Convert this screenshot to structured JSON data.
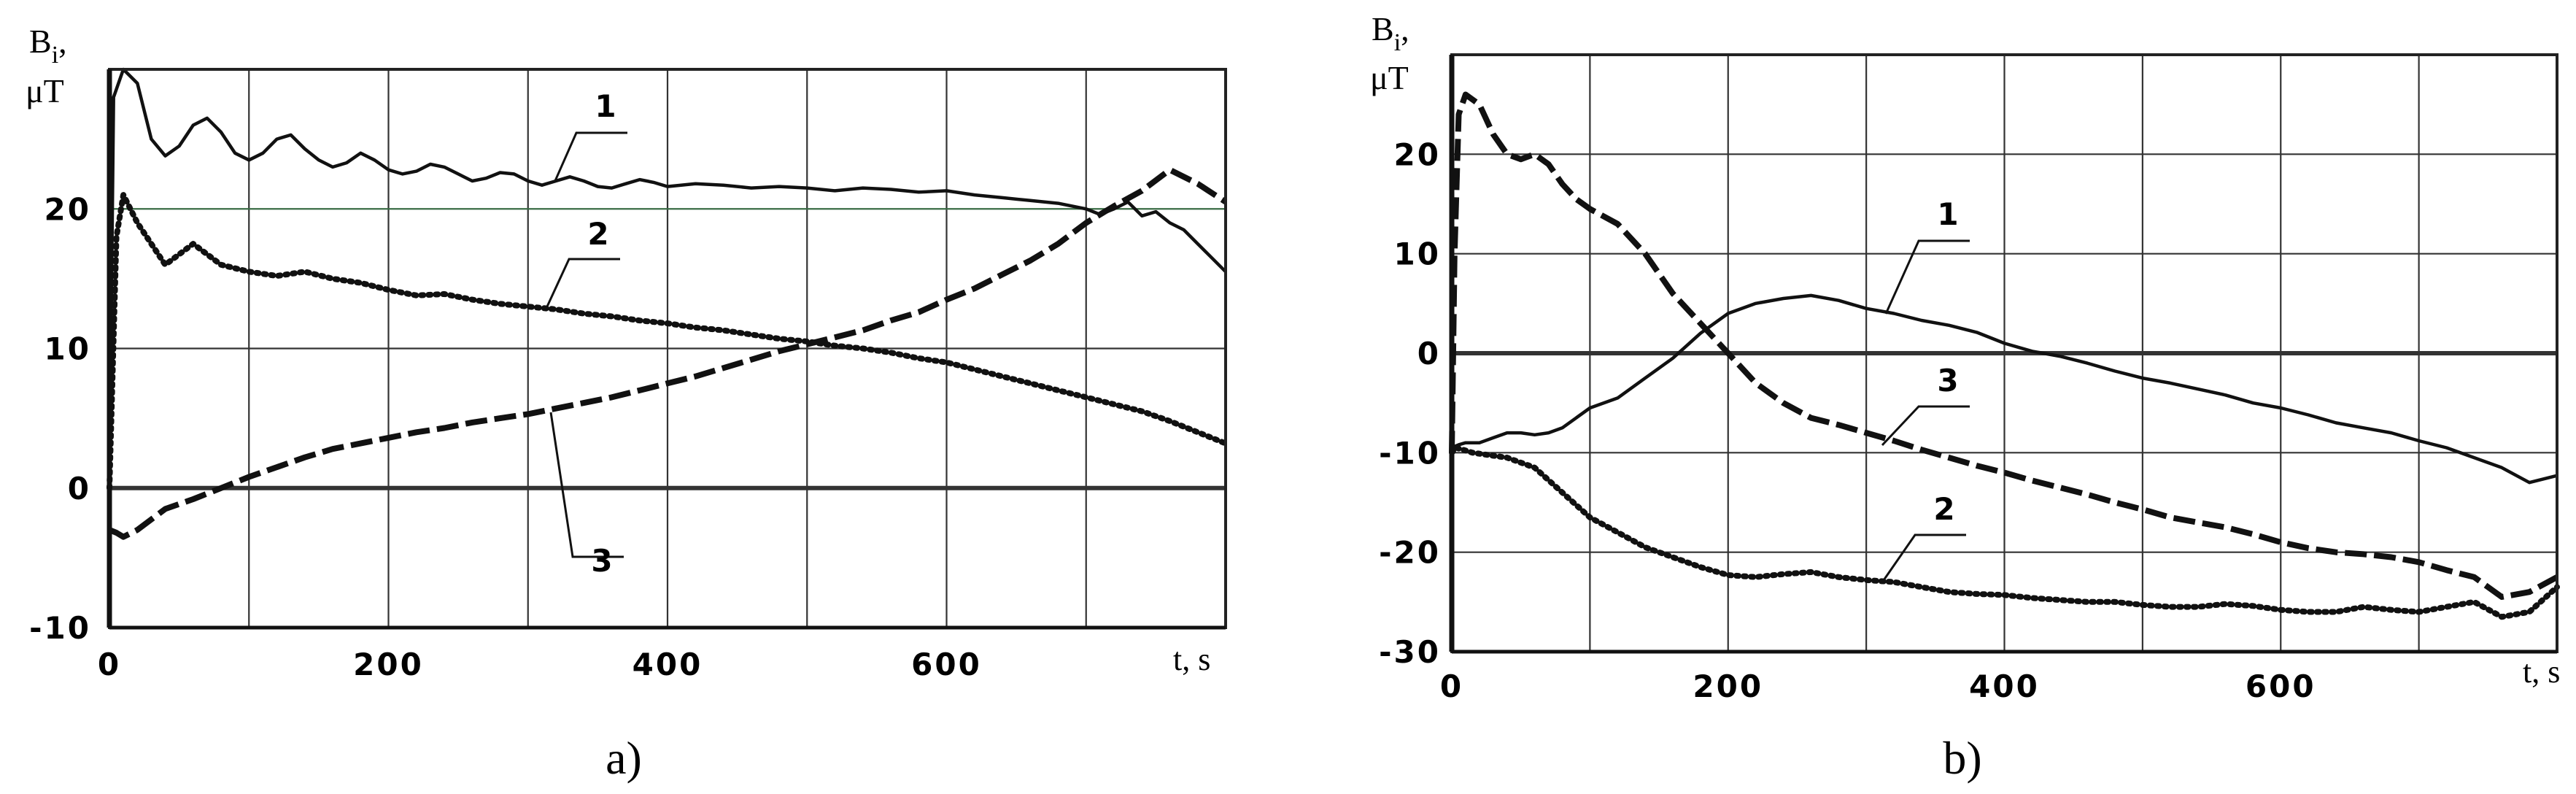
{
  "chart_data": [
    {
      "type": "line",
      "panel_label": "a)",
      "ylabel_symbol": "B",
      "ylabel_subscript": "i",
      "ylabel_comma": ",",
      "yunit": "μT",
      "xlabel": "t, s",
      "xlim": [
        0,
        800
      ],
      "ylim": [
        -10,
        30
      ],
      "xgrid": [
        0,
        100,
        200,
        300,
        400,
        500,
        600,
        700,
        800
      ],
      "ygrid": [
        -10,
        0,
        10,
        20,
        30
      ],
      "xticks": [
        {
          "value": 0,
          "label": "0"
        },
        {
          "value": 200,
          "label": "200"
        },
        {
          "value": 400,
          "label": "400"
        },
        {
          "value": 600,
          "label": "600"
        }
      ],
      "yticks": [
        {
          "value": -10,
          "label": "-10"
        },
        {
          "value": 0,
          "label": "0"
        },
        {
          "value": 10,
          "label": "10"
        },
        {
          "value": 20,
          "label": "20"
        }
      ],
      "grid": true,
      "series": [
        {
          "label": "1",
          "style": "solid",
          "x": [
            0,
            3,
            10,
            20,
            30,
            40,
            50,
            60,
            70,
            80,
            90,
            100,
            110,
            120,
            130,
            140,
            150,
            160,
            170,
            180,
            190,
            200,
            210,
            220,
            230,
            240,
            250,
            260,
            270,
            280,
            290,
            300,
            310,
            320,
            330,
            340,
            350,
            360,
            370,
            380,
            390,
            400,
            420,
            440,
            460,
            480,
            500,
            520,
            540,
            560,
            580,
            600,
            620,
            640,
            660,
            680,
            700,
            710,
            720,
            730,
            740,
            750,
            760,
            770,
            780,
            790,
            800
          ],
          "y": [
            0,
            28,
            30,
            29,
            25,
            23.8,
            24.5,
            26,
            26.5,
            25.5,
            24,
            23.5,
            24,
            25,
            25.3,
            24.3,
            23.5,
            23,
            23.3,
            24,
            23.5,
            22.8,
            22.5,
            22.7,
            23.2,
            23,
            22.5,
            22,
            22.2,
            22.6,
            22.5,
            22,
            21.7,
            22,
            22.3,
            22,
            21.6,
            21.5,
            21.8,
            22.1,
            21.9,
            21.6,
            21.8,
            21.7,
            21.5,
            21.6,
            21.5,
            21.3,
            21.5,
            21.4,
            21.2,
            21.3,
            21,
            20.8,
            20.6,
            20.4,
            20,
            19.6,
            20,
            20.5,
            19.5,
            19.8,
            19,
            18.5,
            17.5,
            16.5,
            15.5
          ]
        },
        {
          "label": "2",
          "style": "dotted",
          "x": [
            0,
            5,
            10,
            20,
            40,
            60,
            80,
            100,
            120,
            140,
            160,
            180,
            200,
            220,
            240,
            260,
            280,
            300,
            320,
            340,
            360,
            380,
            400,
            420,
            440,
            460,
            480,
            500,
            520,
            540,
            560,
            580,
            600,
            620,
            640,
            660,
            680,
            700,
            720,
            740,
            760,
            780,
            800
          ],
          "y": [
            0,
            18,
            21,
            19,
            16,
            17.5,
            16,
            15.5,
            15.2,
            15.5,
            15,
            14.7,
            14.2,
            13.8,
            13.9,
            13.5,
            13.2,
            13,
            12.8,
            12.5,
            12.3,
            12,
            11.8,
            11.5,
            11.3,
            11,
            10.7,
            10.5,
            10.2,
            10,
            9.7,
            9.3,
            9,
            8.5,
            8,
            7.5,
            7,
            6.5,
            6,
            5.5,
            4.8,
            4,
            3.2
          ]
        },
        {
          "label": "3",
          "style": "dashed",
          "x": [
            0,
            5,
            10,
            20,
            40,
            60,
            80,
            100,
            120,
            140,
            160,
            180,
            200,
            220,
            240,
            260,
            280,
            300,
            320,
            340,
            360,
            380,
            400,
            420,
            440,
            460,
            480,
            500,
            520,
            540,
            560,
            580,
            600,
            620,
            640,
            660,
            680,
            700,
            720,
            740,
            760,
            780,
            800
          ],
          "y": [
            -3,
            -3.2,
            -3.5,
            -3,
            -1.5,
            -0.8,
            0,
            0.8,
            1.5,
            2.2,
            2.8,
            3.2,
            3.6,
            4,
            4.3,
            4.7,
            5,
            5.3,
            5.7,
            6.1,
            6.5,
            7,
            7.5,
            8,
            8.6,
            9.2,
            9.8,
            10.3,
            10.8,
            11.3,
            12,
            12.6,
            13.5,
            14.3,
            15.3,
            16.3,
            17.5,
            19,
            20.2,
            21.3,
            22.8,
            21.8,
            20.5
          ]
        }
      ]
    },
    {
      "type": "line",
      "panel_label": "b)",
      "ylabel_symbol": "B",
      "ylabel_subscript": "i",
      "ylabel_comma": ",",
      "yunit": "μT",
      "xlabel": "t, s",
      "xlim": [
        0,
        800
      ],
      "ylim": [
        -30,
        30
      ],
      "xgrid": [
        0,
        100,
        200,
        300,
        400,
        500,
        600,
        700,
        800
      ],
      "ygrid": [
        -30,
        -20,
        -10,
        0,
        10,
        20,
        30
      ],
      "xticks": [
        {
          "value": 0,
          "label": "0"
        },
        {
          "value": 200,
          "label": "200"
        },
        {
          "value": 400,
          "label": "400"
        },
        {
          "value": 600,
          "label": "600"
        }
      ],
      "yticks": [
        {
          "value": -30,
          "label": "-30"
        },
        {
          "value": -20,
          "label": "-20"
        },
        {
          "value": -10,
          "label": "-10"
        },
        {
          "value": 0,
          "label": "0"
        },
        {
          "value": 10,
          "label": "10"
        },
        {
          "value": 20,
          "label": "20"
        }
      ],
      "grid": true,
      "series": [
        {
          "label": "1",
          "style": "solid",
          "x": [
            0,
            5,
            10,
            20,
            30,
            40,
            50,
            60,
            70,
            80,
            100,
            120,
            140,
            160,
            180,
            200,
            220,
            240,
            260,
            280,
            300,
            320,
            340,
            360,
            380,
            400,
            420,
            440,
            460,
            480,
            500,
            520,
            540,
            560,
            580,
            600,
            620,
            640,
            660,
            680,
            700,
            720,
            740,
            760,
            780,
            800
          ],
          "y": [
            -9.5,
            -9.2,
            -9,
            -9,
            -8.5,
            -8,
            -8,
            -8.2,
            -8,
            -7.5,
            -5.5,
            -4.5,
            -2.5,
            -0.5,
            2,
            4,
            5,
            5.5,
            5.8,
            5.3,
            4.5,
            4,
            3.3,
            2.8,
            2.1,
            1,
            0.2,
            -0.3,
            -1,
            -1.8,
            -2.5,
            -3,
            -3.6,
            -4.2,
            -5,
            -5.5,
            -6.2,
            -7,
            -7.5,
            -8,
            -8.8,
            -9.5,
            -10.5,
            -11.5,
            -13,
            -12.3
          ]
        },
        {
          "label": "2",
          "style": "dotted",
          "x": [
            0,
            3,
            8,
            15,
            25,
            40,
            60,
            80,
            100,
            120,
            140,
            160,
            180,
            200,
            220,
            240,
            260,
            280,
            300,
            320,
            340,
            360,
            380,
            400,
            420,
            440,
            460,
            480,
            500,
            520,
            540,
            560,
            580,
            600,
            620,
            640,
            660,
            680,
            700,
            720,
            740,
            760,
            780,
            800
          ],
          "y": [
            -10,
            -9.5,
            -9.7,
            -10,
            -10.2,
            -10.5,
            -11.5,
            -14,
            -16.5,
            -18,
            -19.5,
            -20.5,
            -21.5,
            -22.3,
            -22.5,
            -22.2,
            -22,
            -22.5,
            -22.8,
            -23,
            -23.5,
            -24,
            -24.2,
            -24.3,
            -24.6,
            -24.8,
            -25,
            -25,
            -25.3,
            -25.5,
            -25.5,
            -25.2,
            -25.4,
            -25.8,
            -26,
            -26,
            -25.5,
            -25.8,
            -26,
            -25.5,
            -25,
            -26.5,
            -26,
            -23.5
          ]
        },
        {
          "label": "3",
          "style": "dashed",
          "x": [
            0,
            2,
            5,
            10,
            20,
            30,
            40,
            50,
            60,
            70,
            80,
            90,
            100,
            120,
            140,
            160,
            180,
            200,
            220,
            240,
            260,
            280,
            300,
            320,
            340,
            360,
            380,
            400,
            420,
            440,
            460,
            480,
            500,
            520,
            540,
            560,
            580,
            600,
            620,
            640,
            660,
            680,
            700,
            720,
            740,
            760,
            780,
            800
          ],
          "y": [
            -10,
            10,
            24,
            26,
            25,
            22,
            20,
            19.5,
            20,
            19,
            17,
            15.5,
            14.5,
            13,
            10,
            6,
            3,
            0,
            -3,
            -5,
            -6.5,
            -7.2,
            -8,
            -8.8,
            -9.7,
            -10.5,
            -11.3,
            -12,
            -12.8,
            -13.5,
            -14.2,
            -15,
            -15.7,
            -16.5,
            -17,
            -17.5,
            -18.2,
            -19,
            -19.6,
            -20,
            -20.2,
            -20.5,
            -21,
            -21.8,
            -22.5,
            -24.5,
            -24,
            -22.5
          ]
        }
      ]
    }
  ]
}
